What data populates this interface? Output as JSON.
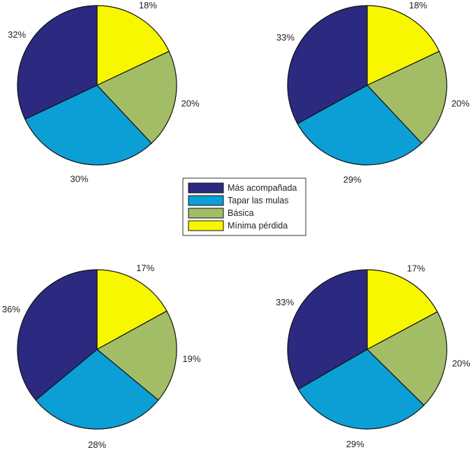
{
  "legend": [
    "Más acompañada",
    "Tapar las mulas",
    "Básica",
    "Mínima pérdida"
  ],
  "colors": [
    "#2b2a80",
    "#0b9fd6",
    "#a3bd66",
    "#f7f700"
  ],
  "chart_data": [
    {
      "type": "pie",
      "slices": [
        {
          "name": "Mínima pérdida",
          "value": 18,
          "label": "18%"
        },
        {
          "name": "Básica",
          "value": 20,
          "label": "20%"
        },
        {
          "name": "Tapar las mulas",
          "value": 30,
          "label": "30%"
        },
        {
          "name": "Más acompañada",
          "value": 32,
          "label": "32%"
        }
      ]
    },
    {
      "type": "pie",
      "slices": [
        {
          "name": "Mínima pérdida",
          "value": 18,
          "label": "18%"
        },
        {
          "name": "Básica",
          "value": 20,
          "label": "20%"
        },
        {
          "name": "Tapar las mulas",
          "value": 29,
          "label": "29%"
        },
        {
          "name": "Más acompañada",
          "value": 33,
          "label": "33%"
        }
      ]
    },
    {
      "type": "pie",
      "slices": [
        {
          "name": "Mínima pérdida",
          "value": 17,
          "label": "17%"
        },
        {
          "name": "Básica",
          "value": 19,
          "label": "19%"
        },
        {
          "name": "Tapar las mulas",
          "value": 28,
          "label": "28%"
        },
        {
          "name": "Más acompañada",
          "value": 36,
          "label": "36%"
        }
      ]
    },
    {
      "type": "pie",
      "slices": [
        {
          "name": "Mínima pérdida",
          "value": 17,
          "label": "17%"
        },
        {
          "name": "Básica",
          "value": 20,
          "label": "20%"
        },
        {
          "name": "Tapar las mulas",
          "value": 29,
          "label": "29%"
        },
        {
          "name": "Más acompañada",
          "value": 33,
          "label": "33%"
        }
      ]
    }
  ]
}
